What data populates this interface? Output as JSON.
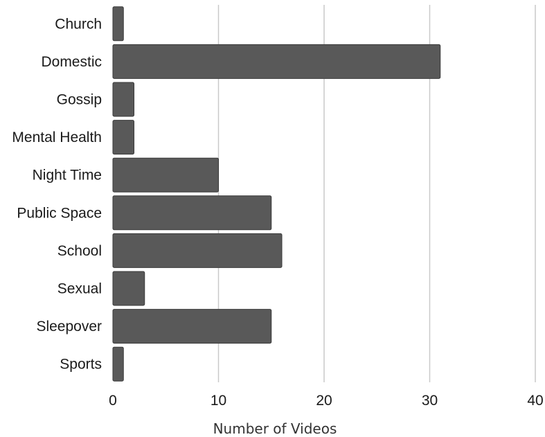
{
  "chart_data": {
    "type": "bar",
    "orientation": "horizontal",
    "categories": [
      "Church",
      "Domestic",
      "Gossip",
      "Mental Health",
      "Night Time",
      "Public Space",
      "School",
      "Sexual",
      "Sleepover",
      "Sports"
    ],
    "values": [
      1,
      31,
      2,
      2,
      10,
      15,
      16,
      3,
      15,
      1
    ],
    "xlabel": "Number of Videos",
    "ylabel": "",
    "xlim": [
      0,
      40
    ],
    "xticks": [
      0,
      10,
      20,
      30,
      40
    ],
    "grid": "vertical",
    "bar_color": "#595959"
  }
}
